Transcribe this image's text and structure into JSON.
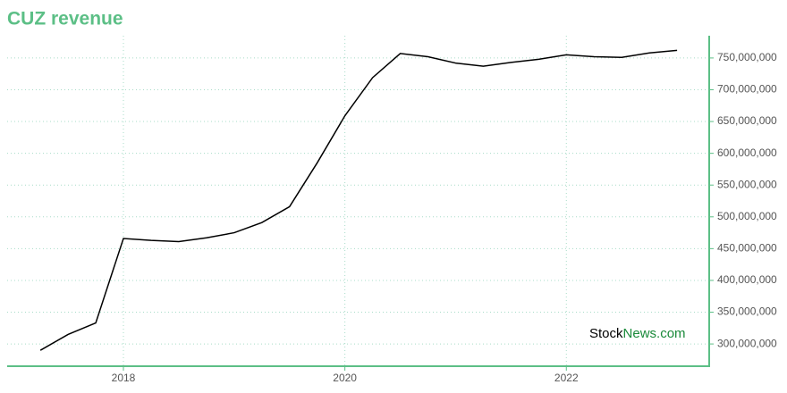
{
  "chart_data": {
    "type": "line",
    "title": "CUZ revenue",
    "watermark": {
      "brand": "Stock",
      "suffix": "News.com"
    },
    "x": [
      2017.25,
      2017.5,
      2017.75,
      2018,
      2018.25,
      2018.5,
      2018.75,
      2019,
      2019.25,
      2019.5,
      2019.75,
      2020,
      2020.25,
      2020.5,
      2020.75,
      2021,
      2021.25,
      2021.5,
      2021.75,
      2022,
      2022.25,
      2022.5,
      2022.75,
      2023
    ],
    "series": [
      {
        "name": "revenue",
        "color": "#000000",
        "values": [
          290000000,
          315000000,
          333000000,
          466000000,
          463000000,
          461000000,
          467000000,
          475000000,
          491000000,
          516000000,
          585000000,
          659000000,
          719000000,
          757000000,
          752000000,
          742000000,
          737000000,
          743000000,
          748000000,
          755000000,
          752000000,
          751000000,
          758000000,
          762000000
        ]
      }
    ],
    "xlim": [
      2016.95,
      2023.29
    ],
    "xticks": [
      2018,
      2020,
      2022
    ],
    "ylim": [
      265000000,
      785000000
    ],
    "yticks": [
      {
        "value": 300000000,
        "label": "300,000,000"
      },
      {
        "value": 350000000,
        "label": "350,000,000"
      },
      {
        "value": 400000000,
        "label": "400,000,000"
      },
      {
        "value": 450000000,
        "label": "450,000,000"
      },
      {
        "value": 500000000,
        "label": "500,000,000"
      },
      {
        "value": 550000000,
        "label": "550,000,000"
      },
      {
        "value": 600000000,
        "label": "600,000,000"
      },
      {
        "value": 650000000,
        "label": "650,000,000"
      },
      {
        "value": 700000000,
        "label": "700,000,000"
      },
      {
        "value": 750000000,
        "label": "750,000,000"
      }
    ],
    "grid": true
  }
}
